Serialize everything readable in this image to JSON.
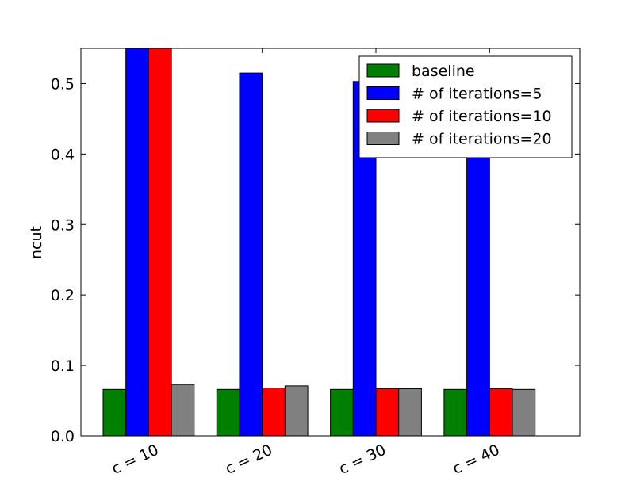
{
  "chart_data": {
    "type": "bar",
    "title": "",
    "xlabel": "",
    "ylabel": "ncut",
    "ylim": [
      0,
      0.55
    ],
    "yticks": [
      "0.0",
      "0.1",
      "0.2",
      "0.3",
      "0.4",
      "0.5"
    ],
    "categories": [
      "c = 10",
      "c = 20",
      "c = 30",
      "c = 40"
    ],
    "series": [
      {
        "name": "baseline",
        "color": "#008000",
        "values": [
          0.066,
          0.066,
          0.066,
          0.066
        ]
      },
      {
        "name": "# of iterations=5",
        "color": "#0000ff",
        "values": [
          0.55,
          0.515,
          0.503,
          0.45
        ]
      },
      {
        "name": "# of iterations=10",
        "color": "#ff0000",
        "values": [
          0.55,
          0.068,
          0.067,
          0.067
        ]
      },
      {
        "name": "# of iterations=20",
        "color": "#808080",
        "values": [
          0.073,
          0.071,
          0.067,
          0.066
        ]
      }
    ],
    "legend_position": "top-right",
    "grid": false
  }
}
